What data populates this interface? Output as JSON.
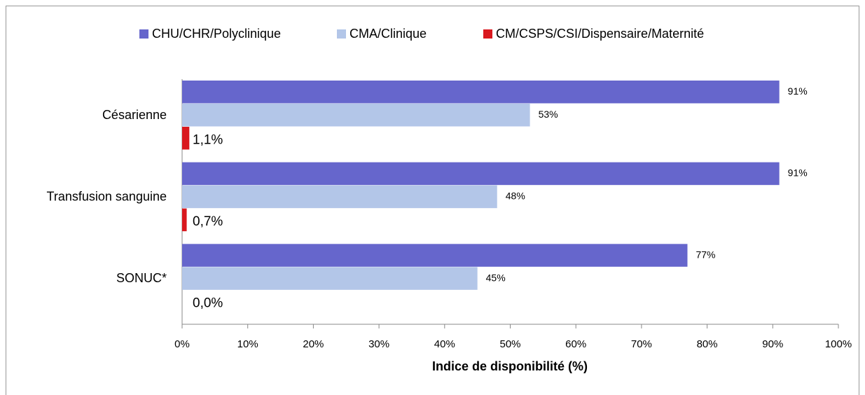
{
  "chart_data": {
    "type": "bar",
    "orientation": "horizontal",
    "x_label": "Indice de disponibilité (%)",
    "categories": [
      "Césarienne",
      "Transfusion sanguine",
      "SONUC*"
    ],
    "series": [
      {
        "name": "CHU/CHR/Polyclinique",
        "color": "#6666cc",
        "values": [
          91,
          91,
          77
        ],
        "value_labels": [
          "91%",
          "91%",
          "77%"
        ]
      },
      {
        "name": "CMA/Clinique",
        "color": "#b3c6e8",
        "values": [
          53,
          48,
          45
        ],
        "value_labels": [
          "53%",
          "48%",
          "45%"
        ]
      },
      {
        "name": "CM/CSPS/CSI/Dispensaire/Maternité",
        "color": "#d9181e",
        "values": [
          1.1,
          0.7,
          0.0
        ],
        "value_labels": [
          "1,1%",
          "0,7%",
          "0,0%"
        ]
      }
    ],
    "xlim": [
      0,
      100
    ],
    "xticks": [
      {
        "value": 0,
        "label": "0%"
      },
      {
        "value": 10,
        "label": "10%"
      },
      {
        "value": 20,
        "label": "20%"
      },
      {
        "value": 30,
        "label": "30%"
      },
      {
        "value": 40,
        "label": "40%"
      },
      {
        "value": 50,
        "label": "50%"
      },
      {
        "value": 60,
        "label": "60%"
      },
      {
        "value": 70,
        "label": "70%"
      },
      {
        "value": 80,
        "label": "80%"
      },
      {
        "value": 90,
        "label": "90%"
      },
      {
        "value": 100,
        "label": "100%"
      }
    ],
    "legend": "top"
  }
}
